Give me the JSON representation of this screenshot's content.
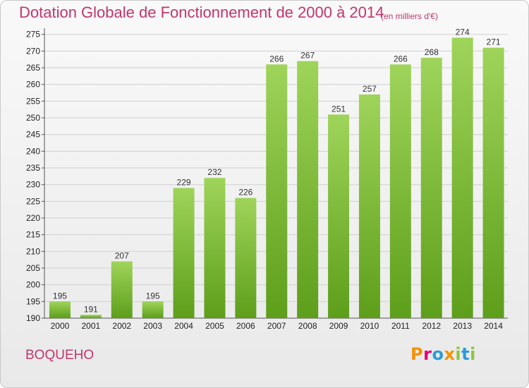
{
  "header": {
    "title": "Dotation Globale de Fonctionnement de 2000 à 2014",
    "unit": "(en milliers d'€)"
  },
  "footer": {
    "commune": "BOQUEHO",
    "brand_letters": [
      "P",
      "r",
      "o",
      "x",
      "i",
      "t",
      "i"
    ]
  },
  "colors": {
    "title": "#c2366e",
    "bar_light": "#9fd45a",
    "bar_dark": "#5d9e1a",
    "grid": "#d0d0d0",
    "brand": [
      "#f39200",
      "#e2007a",
      "#2b9bd8",
      "#f39200",
      "#8dc63f",
      "#2b9bd8",
      "#8dc63f"
    ]
  },
  "chart_data": {
    "type": "bar",
    "title": "Dotation Globale de Fonctionnement de 2000 à 2014",
    "subtitle": "(en milliers d'€)",
    "categories": [
      "2000",
      "2001",
      "2002",
      "2003",
      "2004",
      "2005",
      "2006",
      "2007",
      "2008",
      "2009",
      "2010",
      "2011",
      "2012",
      "2013",
      "2014"
    ],
    "values": [
      195,
      191,
      207,
      195,
      229,
      232,
      226,
      266,
      267,
      251,
      257,
      266,
      268,
      274,
      271
    ],
    "ylim": [
      190,
      276
    ],
    "yticks": [
      190,
      195,
      200,
      205,
      210,
      215,
      220,
      225,
      230,
      235,
      240,
      245,
      250,
      255,
      260,
      265,
      270,
      275
    ],
    "grid": true,
    "data_labels": true
  }
}
